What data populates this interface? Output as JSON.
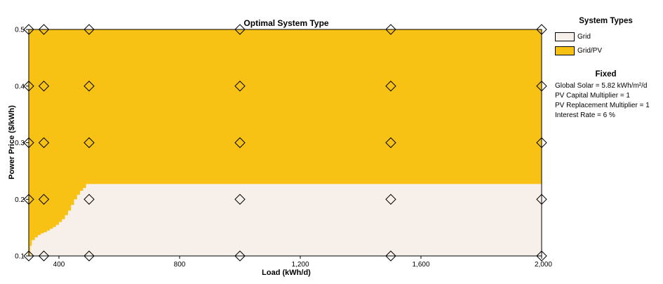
{
  "chart_data": {
    "type": "heatmap",
    "title": "Optimal System Type",
    "xlabel": "Load  (kWh/d)",
    "ylabel": "Power Price  ($/kWh)",
    "xlim": [
      300,
      2000
    ],
    "ylim": [
      0.1,
      0.5
    ],
    "x_ticks": [
      400,
      800,
      1200,
      1600,
      2000
    ],
    "x_tick_labels": [
      "400",
      "800",
      "1,200",
      "1,600",
      "2,000"
    ],
    "y_ticks": [
      0.1,
      0.2,
      0.3,
      0.4,
      0.5
    ],
    "y_tick_labels": [
      "0.1",
      "0.2",
      "0.3",
      "0.4",
      "0.5"
    ],
    "regions": [
      {
        "name": "Grid",
        "color": "#f6efea"
      },
      {
        "name": "Grid/PV",
        "color": "#f7c213"
      }
    ],
    "boundary": {
      "description_points_x": [
        300,
        305,
        310,
        320,
        330,
        340,
        350,
        360,
        370,
        380,
        390,
        400,
        410,
        420,
        430,
        440,
        450,
        460,
        470,
        480,
        490,
        2000
      ],
      "description_points_y": [
        0.1,
        0.118,
        0.128,
        0.133,
        0.137,
        0.14,
        0.142,
        0.145,
        0.148,
        0.151,
        0.155,
        0.16,
        0.165,
        0.172,
        0.18,
        0.19,
        0.2,
        0.208,
        0.215,
        0.22,
        0.227,
        0.227
      ]
    },
    "sample_points": {
      "x": [
        300,
        350,
        500,
        1000,
        1500,
        2000
      ],
      "y": [
        0.1,
        0.2,
        0.3,
        0.4,
        0.5
      ]
    }
  },
  "legend": {
    "heading": "System Types",
    "items": [
      {
        "label": "Grid",
        "color": "#f6efea"
      },
      {
        "label": "Grid/PV",
        "color": "#f7c213"
      }
    ]
  },
  "fixed": {
    "heading": "Fixed",
    "lines": [
      "Global Solar = 5.82 kWh/m²/d",
      "PV Capital Multiplier = 1",
      "PV Replacement Multiplier = 1",
      "Interest Rate = 6 %"
    ]
  }
}
